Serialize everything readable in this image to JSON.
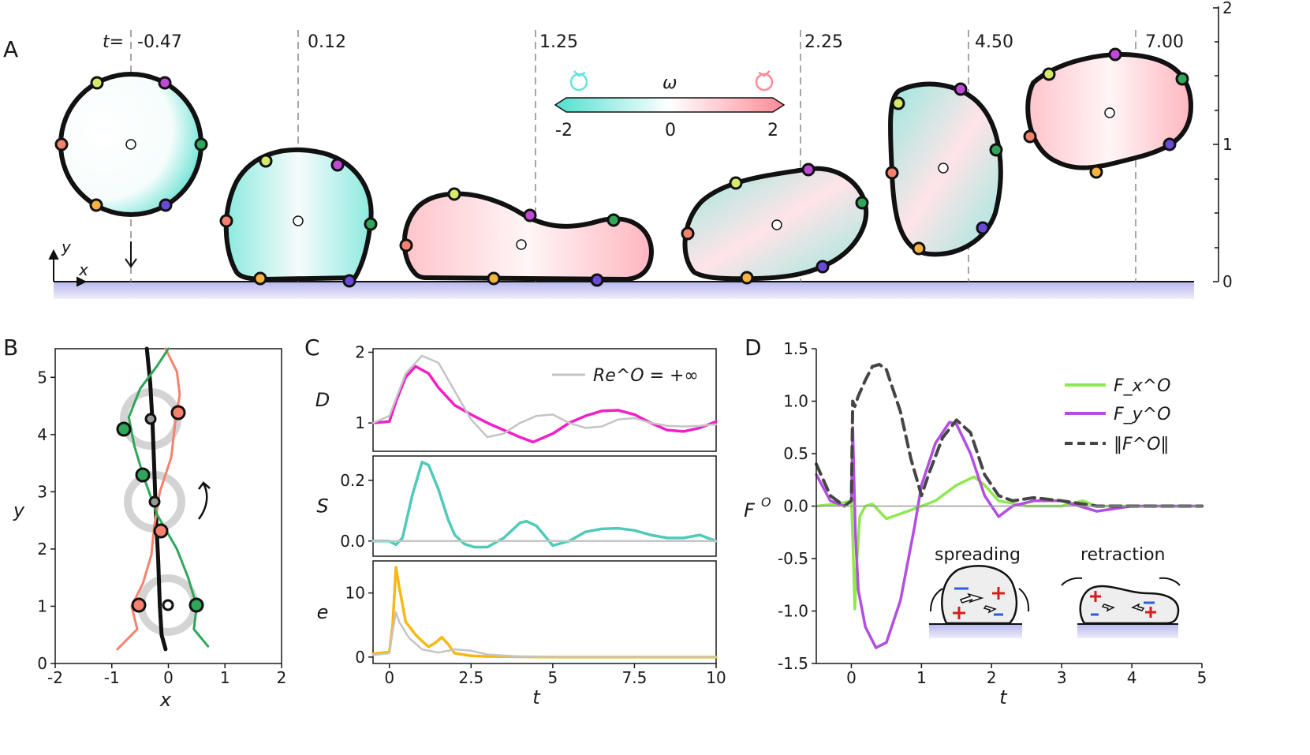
{
  "panel_labels": {
    "a": "A",
    "b": "B",
    "c": "C",
    "d": "D"
  },
  "panel_a": {
    "time_prefix": "t=",
    "times": [
      "-0.47",
      "0.12",
      "1.25",
      "2.25",
      "4.50",
      "7.00"
    ],
    "axis_x": "x",
    "axis_y": "y",
    "right_scale_ticks": [
      "0",
      "1",
      "2"
    ],
    "colorbar": {
      "label": "ω",
      "min": "-2",
      "mid": "0",
      "max": "2",
      "min_color": "#4fe0d0",
      "max_color": "#ff8a96"
    }
  },
  "chart_data": [
    {
      "id": "B",
      "type": "line",
      "xlabel": "x",
      "ylabel": "y",
      "xlim": [
        -2,
        2
      ],
      "ylim": [
        0,
        5.5
      ],
      "xticks": [
        "-2",
        "-1",
        "0",
        "1",
        "2"
      ],
      "yticks": [
        "0",
        "1",
        "2",
        "3",
        "4",
        "5"
      ],
      "series": [
        {
          "name": "center",
          "color": "#111111",
          "x": [
            -0.05,
            -0.12,
            -0.15,
            -0.18,
            -0.22,
            -0.25,
            -0.28,
            -0.32,
            -0.38
          ],
          "y": [
            0.25,
            0.5,
            1.0,
            1.8,
            2.6,
            3.4,
            4.2,
            4.9,
            5.5
          ]
        },
        {
          "name": "orange marker",
          "color": "#f4826e",
          "x": [
            -0.9,
            -0.55,
            -0.65,
            -0.45,
            -0.3,
            -0.25,
            -0.15,
            0.05,
            0.12,
            0.2,
            0.15,
            -0.05
          ],
          "y": [
            0.25,
            0.6,
            1.0,
            1.4,
            1.9,
            2.4,
            3.0,
            3.6,
            4.2,
            4.7,
            5.1,
            5.5
          ]
        },
        {
          "name": "green marker",
          "color": "#2fa65a",
          "x": [
            0.7,
            0.45,
            0.5,
            0.35,
            0.15,
            -0.2,
            -0.45,
            -0.6,
            -0.7,
            -0.5,
            -0.2,
            0.0
          ],
          "y": [
            0.3,
            0.6,
            1.0,
            1.5,
            2.0,
            2.6,
            3.3,
            3.8,
            4.3,
            4.8,
            5.2,
            5.5
          ]
        }
      ]
    },
    {
      "id": "C_D",
      "type": "line",
      "ylabel": "D",
      "xlim": [
        -0.5,
        10
      ],
      "ylim": [
        0.6,
        2.05
      ],
      "yticks": [
        "1",
        "2"
      ],
      "legend": "Re^O = +∞",
      "series": [
        {
          "name": "D",
          "color": "#f020c8",
          "x": [
            -0.5,
            0,
            0.2,
            0.5,
            0.8,
            1.2,
            1.5,
            2,
            2.5,
            3,
            3.5,
            4,
            4.4,
            5,
            5.5,
            6,
            6.5,
            7,
            7.5,
            8,
            8.5,
            9,
            9.5,
            10
          ],
          "y": [
            1.0,
            1.02,
            1.3,
            1.65,
            1.8,
            1.7,
            1.5,
            1.25,
            1.12,
            1.0,
            0.9,
            0.8,
            0.73,
            0.85,
            1.0,
            1.1,
            1.17,
            1.18,
            1.12,
            1.0,
            0.9,
            0.88,
            0.93,
            1.02
          ]
        },
        {
          "name": "Re=inf",
          "color": "#c4c4c4",
          "x": [
            -0.5,
            0,
            0.5,
            1,
            1.5,
            2,
            2.5,
            3,
            3.5,
            4,
            4.5,
            5,
            5.5,
            6,
            6.5,
            7,
            7.5,
            8,
            8.5,
            9,
            9.5,
            10
          ],
          "y": [
            1.0,
            1.1,
            1.7,
            1.95,
            1.85,
            1.45,
            1.05,
            0.8,
            0.85,
            1.0,
            1.1,
            1.12,
            1.0,
            0.93,
            0.95,
            1.05,
            1.07,
            1.0,
            0.96,
            0.95,
            0.96,
            0.98
          ]
        }
      ]
    },
    {
      "id": "C_S",
      "type": "line",
      "ylabel": "S",
      "xlim": [
        -0.5,
        10
      ],
      "ylim": [
        -0.05,
        0.28
      ],
      "yticks": [
        "0.0",
        "0.2"
      ],
      "series": [
        {
          "name": "S",
          "color": "#4fcab8",
          "x": [
            -0.5,
            0,
            0.2,
            0.4,
            0.7,
            1,
            1.2,
            1.5,
            1.8,
            2,
            2.3,
            2.6,
            3,
            3.5,
            4,
            4.2,
            4.5,
            5,
            5.5,
            6,
            6.5,
            7,
            7.5,
            8,
            8.5,
            9,
            9.5,
            10
          ],
          "y": [
            0,
            0,
            -0.012,
            0.01,
            0.15,
            0.26,
            0.25,
            0.17,
            0.07,
            0.02,
            -0.01,
            -0.02,
            -0.02,
            0.01,
            0.06,
            0.065,
            0.05,
            -0.015,
            0.0,
            0.03,
            0.04,
            0.042,
            0.035,
            0.02,
            0.01,
            0.01,
            0.02,
            0.0
          ]
        },
        {
          "name": "Re=inf",
          "color": "#c4c4c4",
          "x": [
            -0.5,
            10
          ],
          "y": [
            0,
            0
          ]
        }
      ]
    },
    {
      "id": "C_e",
      "type": "line",
      "xlabel": "t",
      "ylabel": "e",
      "xlim": [
        -0.5,
        10
      ],
      "ylim": [
        -1,
        15
      ],
      "xticks": [
        "0",
        "2.5",
        "5",
        "7.5",
        "10"
      ],
      "yticks": [
        "0",
        "10"
      ],
      "series": [
        {
          "name": "e",
          "color": "#f8b814",
          "x": [
            -0.5,
            0,
            0.1,
            0.2,
            0.3,
            0.5,
            0.8,
            1.0,
            1.2,
            1.4,
            1.6,
            1.8,
            2,
            2.5,
            3,
            4,
            5,
            6,
            7,
            8,
            9,
            10
          ],
          "y": [
            0.5,
            0.8,
            5,
            14,
            11,
            5.5,
            3.5,
            2.5,
            1.6,
            2.2,
            3.1,
            2.0,
            0.6,
            0.2,
            0.1,
            0.05,
            0,
            0,
            0,
            0,
            0,
            0
          ]
        },
        {
          "name": "Re=inf",
          "color": "#c4c4c4",
          "x": [
            -0.5,
            0,
            0.1,
            0.2,
            0.3,
            0.6,
            1,
            1.5,
            2,
            2.5,
            3,
            4,
            5,
            10
          ],
          "y": [
            0.3,
            0.6,
            4,
            7,
            5.5,
            3,
            1.2,
            0.7,
            1.2,
            1.0,
            0.4,
            0.1,
            0.0,
            0
          ]
        }
      ]
    },
    {
      "id": "D",
      "type": "line",
      "xlabel": "t",
      "ylabel": "F^O",
      "xlim": [
        -0.5,
        5
      ],
      "ylim": [
        -1.5,
        1.5
      ],
      "xticks": [
        "0",
        "1",
        "2",
        "3",
        "4",
        "5"
      ],
      "yticks": [
        "-1.5",
        "-1.0",
        "-0.5",
        "0.0",
        "0.5",
        "1.0",
        "1.5"
      ],
      "legend_position": "top-right",
      "legend": [
        "F_x^O",
        "F_y^O",
        "‖F^O‖"
      ],
      "series": [
        {
          "name": "F_x^O",
          "color": "#8ee84e",
          "x": [
            -0.5,
            -0.2,
            0,
            0.02,
            0.05,
            0.08,
            0.12,
            0.2,
            0.3,
            0.5,
            0.8,
            1,
            1.2,
            1.5,
            1.75,
            1.9,
            2.1,
            2.5,
            3,
            3.3,
            3.5,
            4,
            4.5,
            5
          ],
          "y": [
            0,
            0.02,
            0.05,
            -0.3,
            -0.98,
            -0.5,
            -0.1,
            0.0,
            0.02,
            -0.12,
            -0.05,
            0.0,
            0.05,
            0.2,
            0.28,
            0.2,
            0.05,
            0.0,
            0.0,
            0.05,
            0.0,
            0.0,
            0.0,
            0.0
          ]
        },
        {
          "name": "F_y^O",
          "color": "#b24ee0",
          "x": [
            -0.5,
            -0.3,
            -0.1,
            0,
            0.02,
            0.04,
            0.06,
            0.1,
            0.2,
            0.35,
            0.5,
            0.7,
            0.9,
            1,
            1.2,
            1.4,
            1.5,
            1.7,
            1.9,
            2.1,
            2.3,
            2.6,
            3,
            3.5,
            4,
            4.5,
            5
          ],
          "y": [
            0.3,
            0.05,
            0.0,
            0.05,
            0.75,
            0.2,
            -0.3,
            -0.8,
            -1.15,
            -1.35,
            -1.3,
            -0.9,
            -0.2,
            0.2,
            0.6,
            0.8,
            0.78,
            0.5,
            0.1,
            -0.1,
            0.0,
            0.05,
            0.05,
            -0.05,
            0.0,
            0.0,
            0.0
          ]
        },
        {
          "name": "‖F^O‖",
          "color": "#454545",
          "dashed": true,
          "x": [
            -0.5,
            -0.3,
            -0.1,
            0,
            0.02,
            0.05,
            0.1,
            0.2,
            0.3,
            0.4,
            0.5,
            0.7,
            0.85,
            1,
            1.1,
            1.3,
            1.5,
            1.7,
            1.9,
            2.1,
            2.3,
            2.6,
            3,
            3.5,
            4,
            4.5,
            5
          ],
          "y": [
            0.4,
            0.1,
            0.0,
            0.05,
            1.0,
            0.95,
            1.05,
            1.2,
            1.33,
            1.35,
            1.3,
            0.9,
            0.45,
            0.1,
            0.3,
            0.65,
            0.82,
            0.7,
            0.3,
            0.1,
            0.05,
            0.08,
            0.05,
            0.0,
            0.0,
            0.0,
            0.0
          ]
        },
        {
          "name": "zero",
          "color": "#9a9a9a",
          "x": [
            -0.5,
            5
          ],
          "y": [
            0,
            0
          ]
        }
      ]
    }
  ],
  "insets": {
    "spreading": "spreading",
    "retraction": "retraction"
  }
}
